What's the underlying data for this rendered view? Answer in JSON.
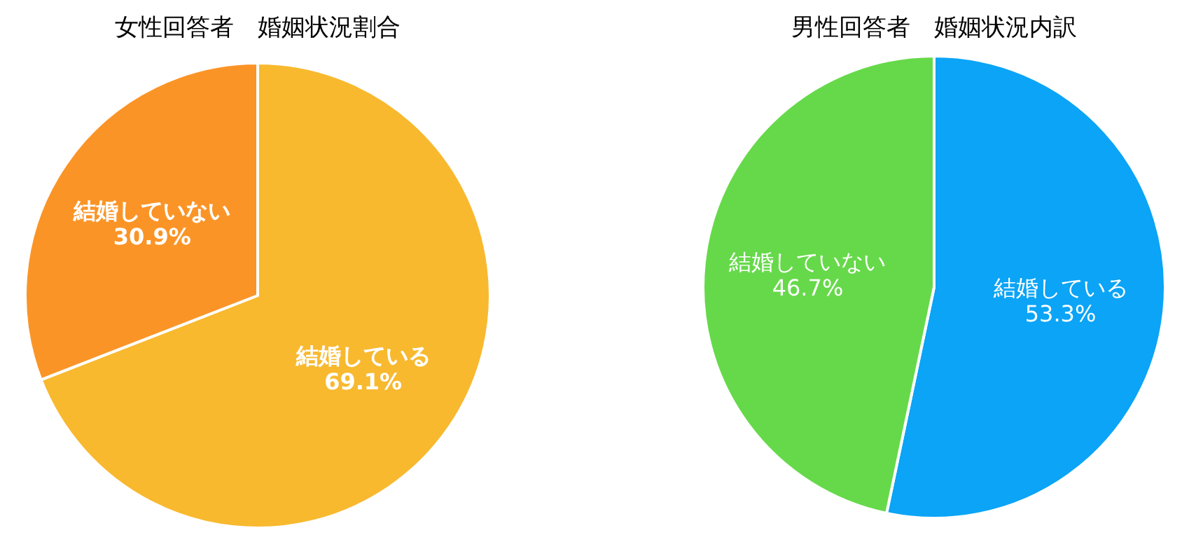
{
  "chart_data": [
    {
      "type": "pie",
      "title": "女性回答者　婚姻状況割合",
      "categories": [
        "結婚している",
        "結婚していない"
      ],
      "values": [
        69.1,
        30.9
      ],
      "colors": [
        "#f8b92f",
        "#fb9426"
      ],
      "value_labels": [
        "69.1%",
        "30.9%"
      ]
    },
    {
      "type": "pie",
      "title": "男性回答者　婚姻状況内訳",
      "categories": [
        "結婚している",
        "結婚していない"
      ],
      "values": [
        53.3,
        46.7
      ],
      "colors": [
        "#0ba4f6",
        "#66d94a"
      ],
      "value_labels": [
        "53.3%",
        "46.7%"
      ]
    }
  ]
}
